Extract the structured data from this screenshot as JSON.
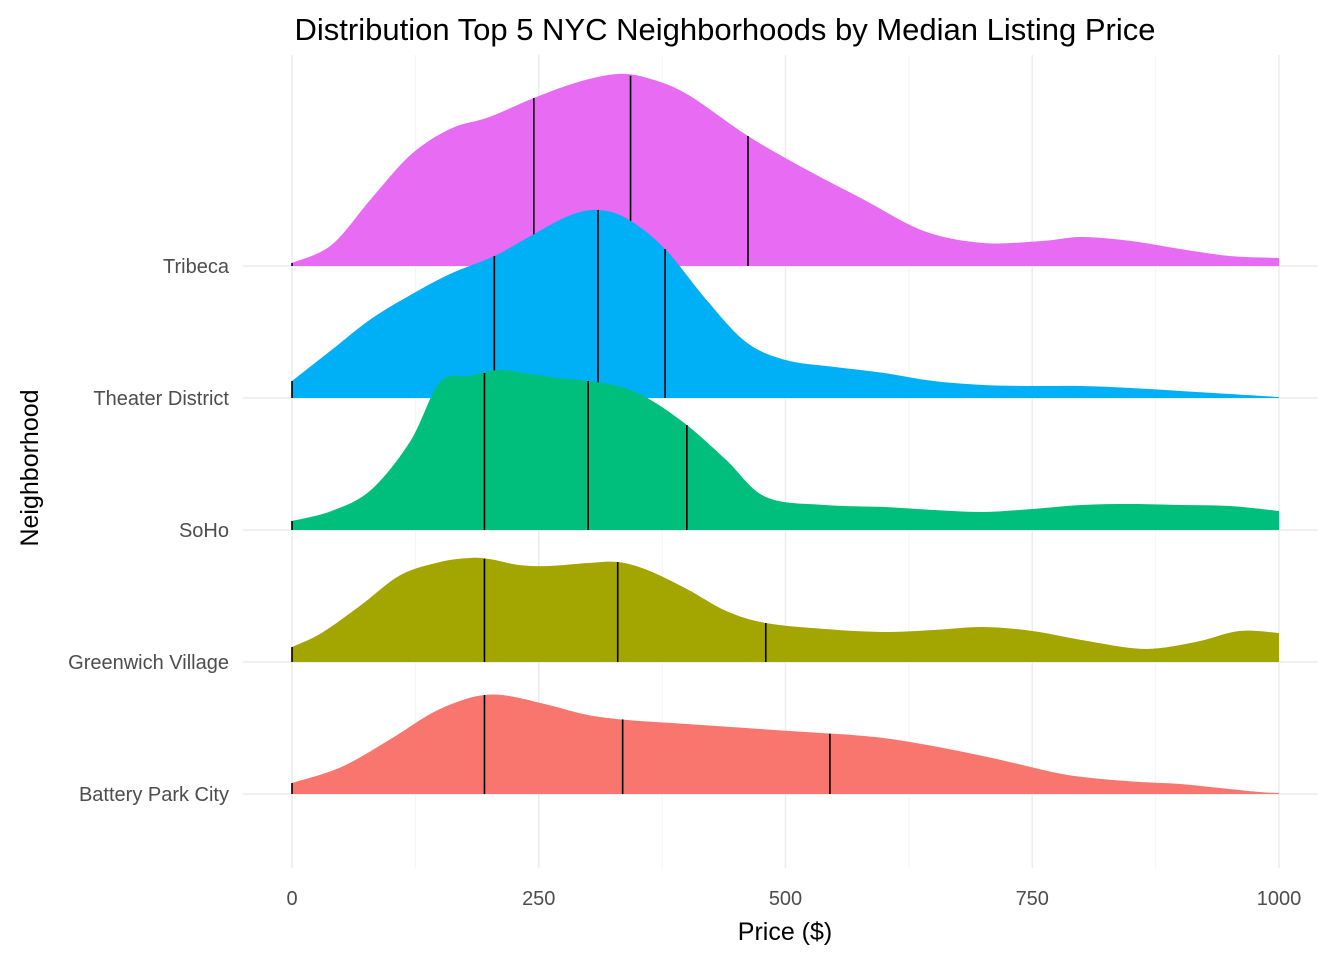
{
  "chart_data": {
    "type": "ridgeline",
    "title": "Distribution  Top 5 NYC Neighborhoods by Median Listing Price",
    "xlabel": "Price ($)",
    "ylabel": "Neighborhood",
    "xlim": [
      0,
      1000
    ],
    "x_ticks": [
      0,
      250,
      500,
      750,
      1000
    ],
    "x_tick_labels": [
      "0",
      "250",
      "500",
      "750",
      "1000"
    ],
    "grid": true,
    "legend": "none",
    "series": [
      {
        "name": "Battery Park City",
        "color": "#F8766D",
        "quantiles": [
          195,
          335,
          545
        ],
        "density_x": [
          0,
          50,
          100,
          140,
          170,
          195,
          220,
          260,
          300,
          340,
          400,
          460,
          520,
          580,
          620,
          660,
          700,
          740,
          780,
          820,
          860,
          900,
          940,
          980,
          1000
        ],
        "density_y": [
          0.11,
          0.27,
          0.55,
          0.8,
          0.93,
          0.99,
          0.98,
          0.89,
          0.79,
          0.74,
          0.7,
          0.66,
          0.62,
          0.58,
          0.53,
          0.46,
          0.38,
          0.29,
          0.2,
          0.15,
          0.12,
          0.1,
          0.06,
          0.02,
          0.01
        ]
      },
      {
        "name": "Greenwich Village",
        "color": "#A3A500",
        "quantiles": [
          195,
          330,
          480
        ],
        "density_x": [
          0,
          30,
          70,
          110,
          150,
          180,
          200,
          230,
          260,
          300,
          330,
          360,
          400,
          440,
          480,
          540,
          600,
          650,
          700,
          750,
          800,
          850,
          880,
          920,
          960,
          1000
        ],
        "density_y": [
          0.15,
          0.29,
          0.57,
          0.87,
          1.0,
          1.04,
          1.03,
          0.97,
          0.96,
          0.99,
          1.0,
          0.92,
          0.73,
          0.51,
          0.39,
          0.33,
          0.3,
          0.32,
          0.35,
          0.31,
          0.22,
          0.14,
          0.14,
          0.21,
          0.31,
          0.29
        ]
      },
      {
        "name": "SoHo",
        "color": "#00BF7D",
        "quantiles": [
          195,
          300,
          400
        ],
        "density_x": [
          0,
          40,
          80,
          120,
          150,
          180,
          210,
          240,
          270,
          300,
          330,
          360,
          400,
          440,
          480,
          540,
          600,
          650,
          700,
          750,
          800,
          850,
          900,
          950,
          1000
        ],
        "density_y": [
          0.09,
          0.19,
          0.4,
          0.89,
          1.48,
          1.54,
          1.6,
          1.56,
          1.52,
          1.49,
          1.44,
          1.32,
          1.05,
          0.7,
          0.33,
          0.25,
          0.23,
          0.2,
          0.18,
          0.21,
          0.25,
          0.26,
          0.25,
          0.24,
          0.19
        ]
      },
      {
        "name": "Theater District",
        "color": "#00B0F6",
        "quantiles": [
          205,
          310,
          378
        ],
        "density_x": [
          0,
          40,
          80,
          120,
          160,
          205,
          240,
          280,
          310,
          340,
          378,
          420,
          460,
          500,
          550,
          600,
          650,
          700,
          750,
          800,
          850,
          900,
          950,
          1000
        ],
        "density_y": [
          0.17,
          0.48,
          0.79,
          1.03,
          1.24,
          1.42,
          1.61,
          1.82,
          1.88,
          1.79,
          1.49,
          0.98,
          0.56,
          0.38,
          0.31,
          0.25,
          0.17,
          0.13,
          0.12,
          0.12,
          0.1,
          0.07,
          0.04,
          0.01
        ]
      },
      {
        "name": "Tribeca",
        "color": "#E76BF3",
        "quantiles": [
          245,
          343,
          462
        ],
        "density_x": [
          0,
          40,
          80,
          120,
          160,
          200,
          245,
          290,
          330,
          360,
          400,
          462,
          520,
          580,
          640,
          700,
          760,
          800,
          850,
          900,
          950,
          1000
        ],
        "density_y": [
          0.03,
          0.21,
          0.67,
          1.11,
          1.37,
          1.49,
          1.68,
          1.84,
          1.92,
          1.88,
          1.72,
          1.3,
          0.97,
          0.66,
          0.35,
          0.23,
          0.25,
          0.29,
          0.25,
          0.17,
          0.1,
          0.08
        ]
      }
    ]
  }
}
